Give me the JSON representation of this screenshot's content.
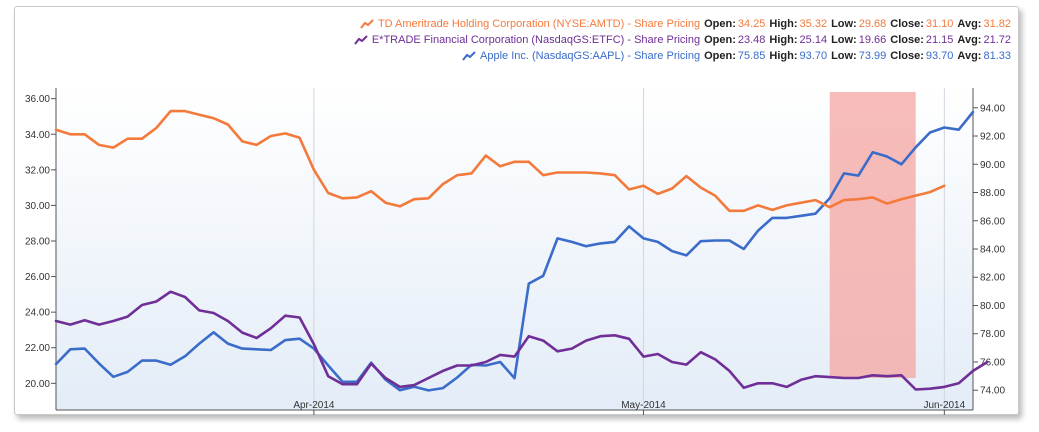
{
  "chart_data": {
    "type": "line",
    "x_ticks": [
      "Apr-2014",
      "May-2014",
      "Jun-2014"
    ],
    "y_left_ticks": [
      "20.00",
      "22.00",
      "24.00",
      "26.00",
      "28.00",
      "30.00",
      "32.00",
      "34.00",
      "36.00"
    ],
    "y_right_ticks": [
      "74.00",
      "76.00",
      "78.00",
      "80.00",
      "82.00",
      "84.00",
      "86.00",
      "88.00",
      "90.00",
      "92.00",
      "94.00"
    ],
    "ylim_left": [
      18.5,
      36.6
    ],
    "ylim_right": [
      72.6,
      95.4
    ],
    "highlight_region": {
      "from_index": 54,
      "to_index": 58,
      "color": "#f4a5a2"
    },
    "series": [
      {
        "name": "TD Ameritrade Holding Corporation (NYSE:AMTD) - Share Pricing",
        "axis": "left",
        "color": "#f47a3c",
        "stats": {
          "Open": "34.25",
          "High": "35.32",
          "Low": "29.68",
          "Close": "31.10",
          "Avg": "31.82"
        },
        "values": [
          34.25,
          34.0,
          34.0,
          33.4,
          33.25,
          33.75,
          33.75,
          34.35,
          35.3,
          35.3,
          35.1,
          34.9,
          34.55,
          33.6,
          33.4,
          33.9,
          34.05,
          33.8,
          32.0,
          30.7,
          30.4,
          30.45,
          30.8,
          30.15,
          29.95,
          30.35,
          30.4,
          31.2,
          31.7,
          31.8,
          32.8,
          32.2,
          32.45,
          32.45,
          31.7,
          31.85,
          31.85,
          31.85,
          31.8,
          31.7,
          30.9,
          31.1,
          30.65,
          30.95,
          31.65,
          31.0,
          30.55,
          29.7,
          29.7,
          30.0,
          29.75,
          30.0,
          30.15,
          30.3,
          29.9,
          30.3,
          30.35,
          30.45,
          30.1,
          30.35,
          30.55,
          30.75,
          31.1
        ]
      },
      {
        "name": "E*TRADE Financial Corporation (NasdaqGS:ETFC) - Share Pricing",
        "axis": "left",
        "color": "#6f2f96",
        "stats": {
          "Open": "23.48",
          "High": "25.14",
          "Low": "19.66",
          "Close": "21.15",
          "Avg": "21.72"
        },
        "values": [
          23.5,
          23.3,
          23.55,
          23.3,
          23.5,
          23.75,
          24.4,
          24.6,
          25.15,
          24.85,
          24.1,
          23.95,
          23.5,
          22.85,
          22.55,
          23.1,
          23.8,
          23.7,
          22.2,
          20.4,
          19.95,
          19.95,
          21.1,
          20.3,
          19.8,
          19.9,
          20.3,
          20.7,
          21.0,
          21.0,
          21.2,
          21.6,
          21.5,
          22.65,
          22.4,
          21.8,
          21.95,
          22.4,
          22.65,
          22.7,
          22.5,
          21.5,
          21.65,
          21.2,
          21.05,
          21.75,
          21.35,
          20.7,
          19.75,
          20.0,
          20.0,
          19.8,
          20.2,
          20.4,
          20.35,
          20.3,
          20.3,
          20.45,
          20.4,
          20.45,
          19.65,
          19.7,
          19.8,
          20.0,
          20.7,
          21.2
        ]
      },
      {
        "name": "Apple Inc. (NasdaqGS:AAPL) - Share Pricing",
        "axis": "right",
        "color": "#3b6cc9",
        "stats": {
          "Open": "75.85",
          "High": "93.70",
          "Low": "73.99",
          "Close": "93.70",
          "Avg": "81.33"
        },
        "values": [
          75.85,
          76.9,
          76.95,
          75.9,
          74.95,
          75.3,
          76.1,
          76.1,
          75.8,
          76.4,
          77.3,
          78.1,
          77.3,
          76.95,
          76.9,
          76.85,
          77.55,
          77.65,
          76.95,
          75.75,
          74.6,
          74.6,
          75.95,
          74.75,
          74.0,
          74.25,
          73.99,
          74.15,
          74.9,
          75.8,
          75.75,
          76.0,
          74.85,
          81.55,
          82.1,
          84.75,
          84.5,
          84.2,
          84.4,
          84.5,
          85.6,
          84.75,
          84.5,
          83.85,
          83.55,
          84.55,
          84.6,
          84.6,
          84.0,
          85.3,
          86.2,
          86.2,
          86.35,
          86.5,
          87.6,
          89.35,
          89.2,
          90.85,
          90.55,
          90.0,
          91.2,
          92.25,
          92.6,
          92.45,
          93.7
        ]
      }
    ]
  }
}
